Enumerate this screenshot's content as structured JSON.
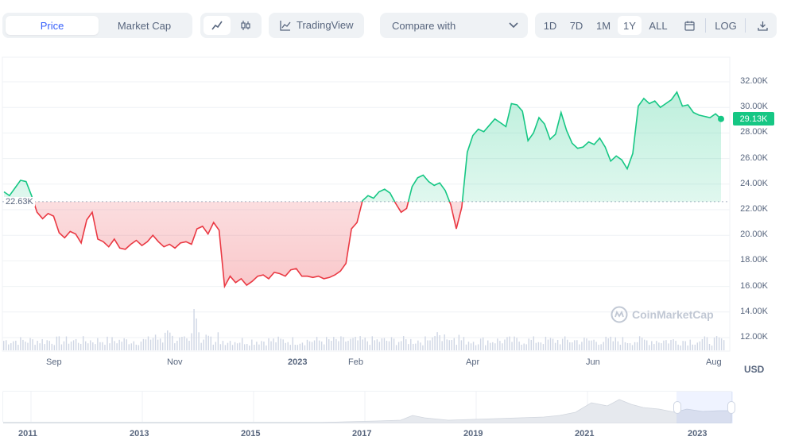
{
  "toolbar": {
    "tabs": [
      {
        "label": "Price",
        "active": true
      },
      {
        "label": "Market Cap",
        "active": false
      }
    ],
    "chart_type_icons": [
      "line-chart-icon",
      "candlestick-icon"
    ],
    "tradingview_label": "TradingView",
    "compare_label": "Compare with",
    "ranges": [
      {
        "label": "1D",
        "active": false
      },
      {
        "label": "7D",
        "active": false
      },
      {
        "label": "1M",
        "active": false
      },
      {
        "label": "1Y",
        "active": true
      },
      {
        "label": "ALL",
        "active": false
      }
    ],
    "log_label": "LOG",
    "icons": [
      "calendar-icon",
      "download-icon"
    ]
  },
  "colors": {
    "up": "#16c784",
    "down": "#ea3943",
    "accent": "#3861fb",
    "grid": "#eff2f5"
  },
  "chart_data": {
    "type": "line",
    "x_ticks": [
      "Sep",
      "Nov",
      "2023",
      "Feb",
      "Apr",
      "Jun",
      "Aug"
    ],
    "y_ticks": [
      "32.00K",
      "30.00K",
      "28.00K",
      "26.00K",
      "24.00K",
      "22.00K",
      "20.00K",
      "18.00K",
      "16.00K",
      "14.00K",
      "12.00K"
    ],
    "ylim": [
      12000,
      32000
    ],
    "baseline": 22630,
    "baseline_label": "22.63K",
    "current_price_label": "29.13K",
    "currency_label": "USD",
    "watermark": "CoinMarketCap",
    "series": [
      {
        "values": [
          23400,
          23100,
          23700,
          24300,
          24200,
          23100,
          21800,
          21300,
          21700,
          21500,
          20200,
          19800,
          20300,
          20100,
          19400,
          21200,
          21800,
          19700,
          19500,
          19100,
          19700,
          19000,
          18900,
          19300,
          19600,
          19200,
          19500,
          20000,
          19500,
          19100,
          19300,
          19000,
          19400,
          19500,
          19300,
          20500,
          20700,
          20100,
          21000,
          20400,
          16000,
          16800,
          16300,
          16600,
          16100,
          16400,
          16800,
          16900,
          16600,
          17100,
          17000,
          16800,
          17300,
          17400,
          16800,
          16800,
          16700,
          16800,
          16600,
          16700,
          16900,
          17200,
          17800,
          20500,
          21000,
          22700,
          23100,
          22900,
          23400,
          23600,
          23300,
          22500,
          21800,
          22100,
          23800,
          24500,
          24700,
          24200,
          23900,
          24100,
          23500,
          22400,
          20500,
          22200,
          26500,
          27800,
          28300,
          28100,
          28600,
          29100,
          28800,
          28500,
          30300,
          30200,
          29700,
          27400,
          28000,
          29200,
          28700,
          27500,
          27900,
          29600,
          28200,
          27200,
          26800,
          26900,
          27300,
          27100,
          27600,
          26900,
          25800,
          26200,
          25900,
          25200,
          26400,
          30100,
          30700,
          30300,
          30500,
          30000,
          30300,
          30600,
          31200,
          30100,
          30200,
          29600,
          29400,
          29300,
          29200,
          29500,
          29100
        ]
      }
    ],
    "navigator_years": [
      "2011",
      "2013",
      "2015",
      "2017",
      "2019",
      "2021",
      "2023"
    ]
  }
}
